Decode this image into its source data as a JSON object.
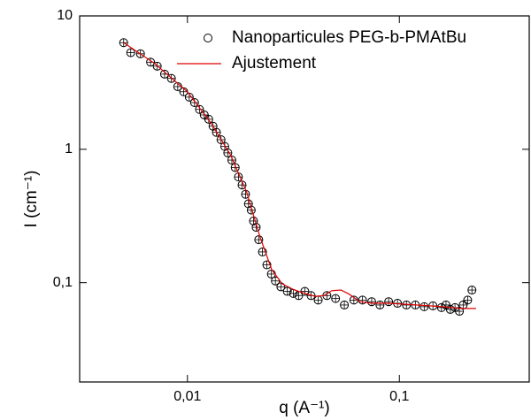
{
  "chart_data": {
    "type": "scatter",
    "xlabel": "q (A⁻¹)",
    "ylabel": "I (cm⁻¹)",
    "xscale": "log",
    "yscale": "log",
    "xlim": [
      0.0031,
      0.41
    ],
    "ylim": [
      0.018,
      10
    ],
    "xticks": [
      {
        "value": 0.01,
        "label": "0,01"
      },
      {
        "value": 0.1,
        "label": "0,1"
      }
    ],
    "yticks": [
      {
        "value": 0.1,
        "label": "0,1"
      },
      1,
      10
    ],
    "legend": "upper right",
    "series": [
      {
        "name": "Nanoparticules PEG-b-PMAtBu",
        "style": "markers",
        "color": "#000000",
        "x": [
          0.005,
          0.0054,
          0.006,
          0.0067,
          0.0072,
          0.0078,
          0.0084,
          0.009,
          0.0096,
          0.0102,
          0.0108,
          0.0114,
          0.012,
          0.0126,
          0.0132,
          0.0137,
          0.0144,
          0.015,
          0.0155,
          0.0162,
          0.0168,
          0.0174,
          0.0181,
          0.0188,
          0.0194,
          0.02,
          0.0205,
          0.0211,
          0.0217,
          0.0226,
          0.0237,
          0.0249,
          0.026,
          0.0276,
          0.0296,
          0.0316,
          0.0335,
          0.0358,
          0.0383,
          0.0414,
          0.0455,
          0.05,
          0.055,
          0.061,
          0.067,
          0.074,
          0.081,
          0.089,
          0.098,
          0.108,
          0.119,
          0.131,
          0.144,
          0.158,
          0.166,
          0.174,
          0.183,
          0.192,
          0.2,
          0.21,
          0.22
        ],
        "values": [
          6.3,
          5.3,
          5.2,
          4.5,
          4.2,
          3.66,
          3.4,
          2.95,
          2.7,
          2.46,
          2.24,
          1.99,
          1.81,
          1.68,
          1.49,
          1.34,
          1.18,
          1.05,
          0.94,
          0.83,
          0.73,
          0.62,
          0.54,
          0.46,
          0.39,
          0.35,
          0.29,
          0.26,
          0.21,
          0.17,
          0.136,
          0.116,
          0.103,
          0.093,
          0.086,
          0.083,
          0.08,
          0.086,
          0.08,
          0.074,
          0.08,
          0.076,
          0.068,
          0.074,
          0.074,
          0.072,
          0.068,
          0.072,
          0.07,
          0.068,
          0.068,
          0.066,
          0.067,
          0.065,
          0.068,
          0.063,
          0.065,
          0.061,
          0.068,
          0.074,
          0.088
        ]
      },
      {
        "name": "Ajustement",
        "style": "line",
        "color": "#e00000",
        "x": [
          0.005,
          0.007,
          0.01,
          0.013,
          0.016,
          0.019,
          0.022,
          0.025,
          0.028,
          0.032,
          0.036,
          0.04,
          0.044,
          0.048,
          0.053,
          0.058,
          0.065,
          0.075,
          0.09,
          0.12,
          0.16,
          0.2,
          0.23
        ],
        "values": [
          6.3,
          4.4,
          2.7,
          1.55,
          0.9,
          0.48,
          0.22,
          0.125,
          0.098,
          0.088,
          0.083,
          0.079,
          0.08,
          0.087,
          0.088,
          0.082,
          0.072,
          0.07,
          0.07,
          0.068,
          0.066,
          0.064,
          0.064
        ]
      }
    ]
  }
}
